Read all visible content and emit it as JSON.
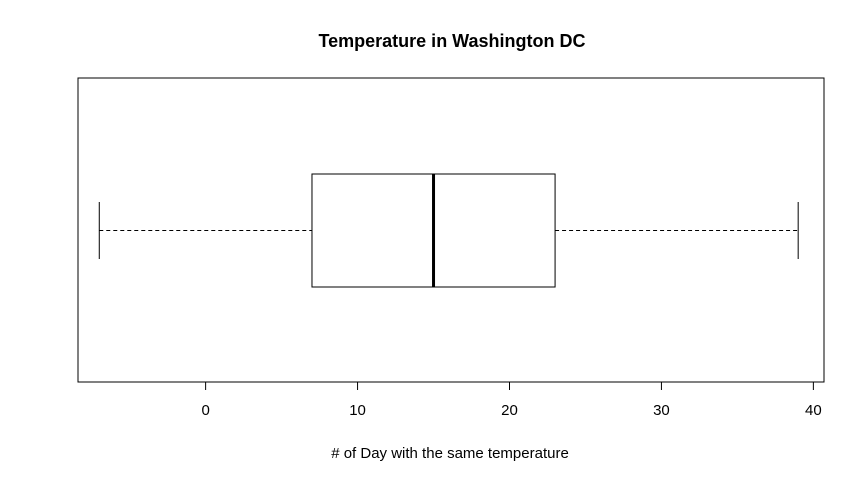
{
  "chart_data": {
    "type": "boxplot",
    "title": "Temperature in Washington DC",
    "xlabel": "# of Day with the same temperature",
    "ylabel": "",
    "orientation": "horizontal",
    "xlim": [
      -8.4,
      40.7
    ],
    "x_ticks": [
      0,
      10,
      20,
      30,
      40
    ],
    "x_tick_labels": [
      "0",
      "10",
      "20",
      "30",
      "40"
    ],
    "grid": false,
    "legend": "none",
    "box": {
      "whisker_low": -7,
      "q1": 7,
      "median": 15,
      "q3": 23,
      "whisker_high": 39
    }
  }
}
